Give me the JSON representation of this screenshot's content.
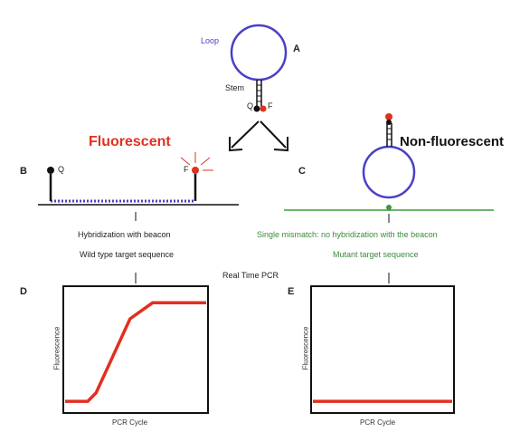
{
  "panels": {
    "a": "A",
    "b": "B",
    "c": "C",
    "d": "D",
    "e": "E"
  },
  "probe": {
    "loop": "Loop",
    "stem": "Stem",
    "quencher": "Q",
    "fluorophore": "F"
  },
  "labels": {
    "fluorescent": "Fluorescent",
    "non_fluorescent": "Non-fluorescent",
    "hyb_line1": "Hybridization with beacon",
    "hyb_line2": "Wild type target sequence",
    "nohyb_line1": "Single mismatch: no hybridization with the beacon",
    "nohyb_line2": "Mutant target sequence",
    "realtime": "Real Time PCR",
    "y_axis": "Fluorescence",
    "x_axis": "PCR Cycle"
  },
  "chart_data": [
    {
      "panel": "D",
      "type": "line",
      "x": [
        0,
        16,
        22,
        46,
        62,
        100
      ],
      "y": [
        8,
        8,
        15,
        75,
        88,
        88
      ],
      "xlabel": "PCR Cycle",
      "ylabel": "Fluorescence",
      "grid": false
    },
    {
      "panel": "E",
      "type": "line",
      "x": [
        0,
        100
      ],
      "y": [
        8,
        8
      ],
      "xlabel": "PCR Cycle",
      "ylabel": "Fluorescence",
      "grid": false
    }
  ],
  "colors": {
    "loop": "#4a3fc7",
    "fluorophore": "#e03020",
    "target_wt": "#4a3fc7",
    "target_mut": "#3a9a3a"
  }
}
